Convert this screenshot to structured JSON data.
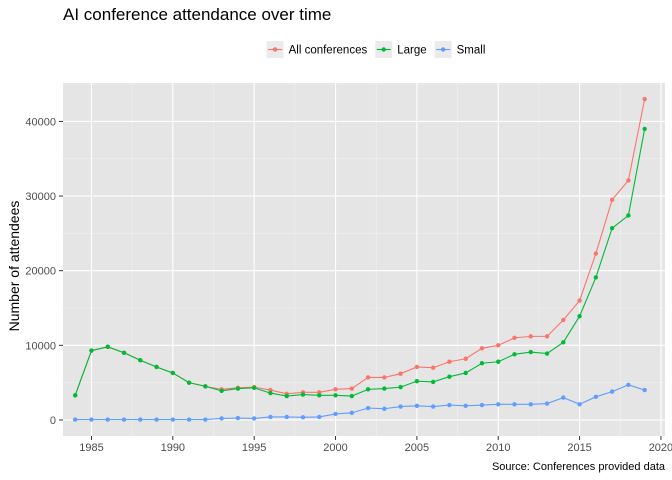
{
  "chart_data": {
    "type": "line",
    "title": "AI conference attendance over time",
    "xlabel": "",
    "ylabel": "Number of  attendees",
    "caption": "Source: Conferences provided data",
    "xlim": [
      1983.25,
      2020.25
    ],
    "ylim": [
      -2150,
      45150
    ],
    "x_ticks": [
      1985,
      1990,
      1995,
      2000,
      2005,
      2010,
      2015,
      2020
    ],
    "x_tick_labels": [
      "1985",
      "1990",
      "1995",
      "2000",
      "2005",
      "2010",
      "2015",
      "2020"
    ],
    "y_ticks": [
      0,
      10000,
      20000,
      30000,
      40000
    ],
    "y_tick_labels": [
      "0",
      "10000",
      "20000",
      "30000",
      "40000"
    ],
    "grid": true,
    "legend_position": "top",
    "colors": {
      "panel": "#e5e5e5",
      "grid_major": "#ffffff",
      "grid_minor": "#f2f2f2",
      "legend_key_bg": "#ebebeb"
    },
    "series": [
      {
        "name": "All conferences",
        "color": "#f8766d",
        "x": [
          1984,
          1985,
          1986,
          1987,
          1988,
          1989,
          1990,
          1991,
          1992,
          1993,
          1994,
          1995,
          1996,
          1997,
          1998,
          1999,
          2000,
          2001,
          2002,
          2003,
          2004,
          2005,
          2006,
          2007,
          2008,
          2009,
          2010,
          2011,
          2012,
          2013,
          2014,
          2015,
          2016,
          2017,
          2018,
          2019
        ],
        "values": [
          3300,
          9300,
          9800,
          9000,
          8000,
          7100,
          6300,
          5000,
          4500,
          4100,
          4300,
          4400,
          4000,
          3500,
          3700,
          3700,
          4100,
          4200,
          5700,
          5700,
          6200,
          7100,
          7000,
          7800,
          8200,
          9600,
          10000,
          11000,
          11200,
          11200,
          13400,
          16000,
          22300,
          29500,
          32100,
          43000
        ]
      },
      {
        "name": "Large",
        "color": "#00ba38",
        "x": [
          1984,
          1985,
          1986,
          1987,
          1988,
          1989,
          1990,
          1991,
          1992,
          1993,
          1994,
          1995,
          1996,
          1997,
          1998,
          1999,
          2000,
          2001,
          2002,
          2003,
          2004,
          2005,
          2006,
          2007,
          2008,
          2009,
          2010,
          2011,
          2012,
          2013,
          2014,
          2015,
          2016,
          2017,
          2018,
          2019
        ],
        "values": [
          3300,
          9300,
          9800,
          9000,
          8000,
          7100,
          6300,
          5000,
          4500,
          3900,
          4200,
          4300,
          3600,
          3200,
          3400,
          3300,
          3300,
          3200,
          4100,
          4200,
          4400,
          5200,
          5100,
          5800,
          6300,
          7600,
          7800,
          8800,
          9100,
          8900,
          10400,
          13900,
          19100,
          25700,
          27400,
          39000
        ]
      },
      {
        "name": "Small",
        "color": "#619cff",
        "x": [
          1984,
          1985,
          1986,
          1987,
          1988,
          1989,
          1990,
          1991,
          1992,
          1993,
          1994,
          1995,
          1996,
          1997,
          1998,
          1999,
          2000,
          2001,
          2002,
          2003,
          2004,
          2005,
          2006,
          2007,
          2008,
          2009,
          2010,
          2011,
          2012,
          2013,
          2014,
          2015,
          2016,
          2017,
          2018,
          2019
        ],
        "values": [
          50,
          50,
          50,
          50,
          50,
          50,
          50,
          50,
          50,
          200,
          250,
          200,
          400,
          400,
          350,
          400,
          800,
          950,
          1600,
          1500,
          1800,
          1900,
          1800,
          2000,
          1900,
          2000,
          2100,
          2100,
          2100,
          2200,
          3000,
          2100,
          3100,
          3800,
          4700,
          4000
        ]
      }
    ]
  }
}
